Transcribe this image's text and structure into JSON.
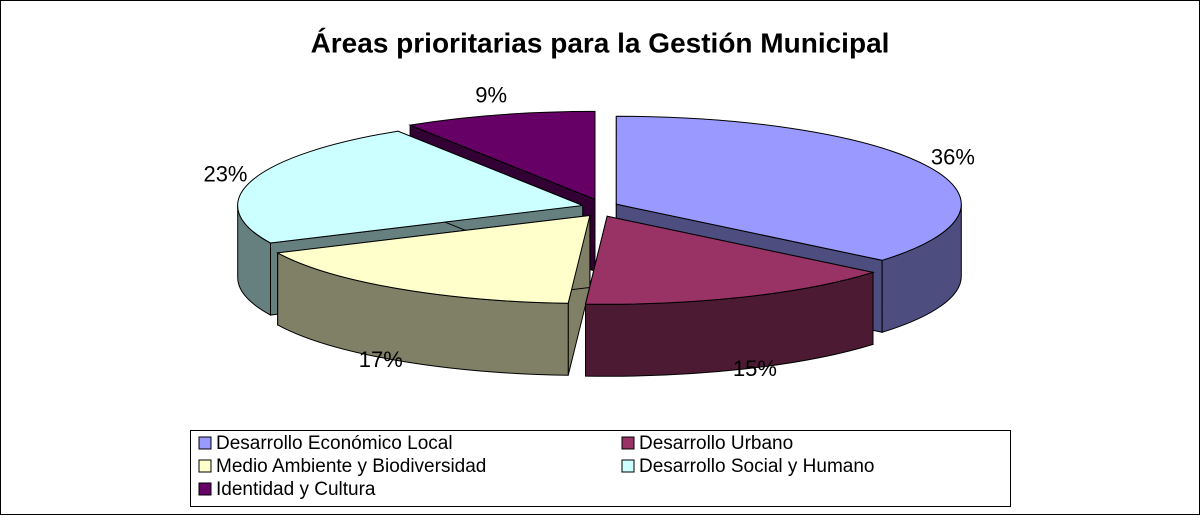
{
  "chart_data": {
    "type": "pie",
    "title": "Áreas prioritarias para la Gestión Municipal",
    "categories": [
      "Desarrollo Económico Local",
      "Desarrollo Urbano",
      "Medio Ambiente y Biodiversidad",
      "Desarrollo Social y Humano",
      "Identidad y Cultura"
    ],
    "values": [
      36,
      15,
      17,
      23,
      9
    ],
    "value_labels": [
      "36%",
      "15%",
      "17%",
      "23%",
      "9%"
    ],
    "colors": [
      "#9999ff",
      "#993366",
      "#ffffcc",
      "#ccffff",
      "#660066"
    ],
    "legend": "bottom"
  }
}
